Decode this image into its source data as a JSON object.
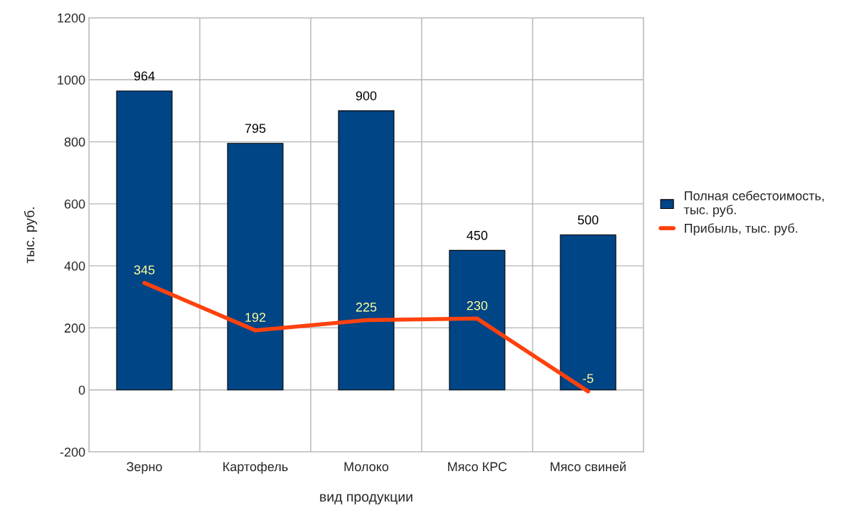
{
  "chart_data": {
    "type": "bar",
    "xlabel": "вид продукции",
    "ylabel": "тыс. руб.",
    "categories": [
      "Зерно",
      "Картофель",
      "Молоко",
      "Мясо КРС",
      "Мясо свиней"
    ],
    "series": [
      {
        "name": "Полная себестоимость, тыс. руб.",
        "color": "#004586",
        "values": [
          964,
          795,
          900,
          450,
          500
        ]
      },
      {
        "name": "Прибыль, тыс. руб.",
        "type": "line",
        "color": "#ff420e",
        "values": [
          345,
          192,
          225,
          230,
          -5
        ]
      }
    ],
    "ylim": [
      -200,
      1200
    ],
    "yticks": [
      -200,
      0,
      200,
      400,
      600,
      800,
      1000,
      1200
    ],
    "grid": true,
    "legend": "right",
    "data_labels": true
  }
}
